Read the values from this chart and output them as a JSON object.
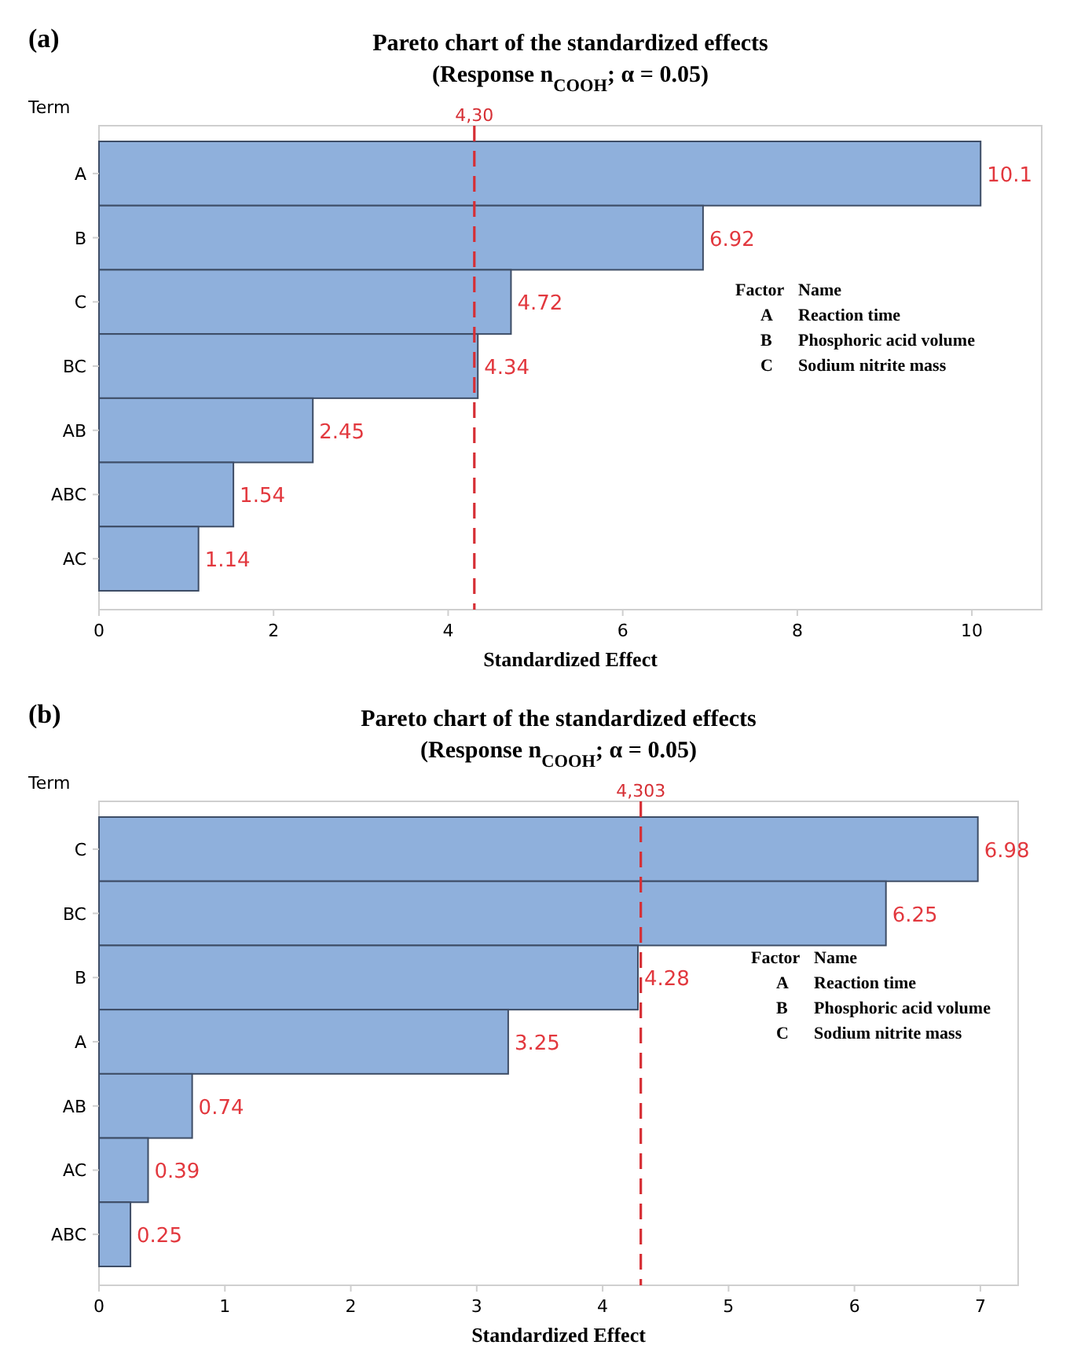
{
  "chart_data": [
    {
      "type": "bar",
      "orientation": "horizontal",
      "title": "Pareto chart of the standardized effects",
      "subtitle": "(Response n$_{COOH}$; α = 0.05)",
      "ylabel": "Term",
      "xlabel": "Standardized Effect",
      "categories": [
        "A",
        "B",
        "C",
        "BC",
        "AB",
        "ABC",
        "AC"
      ],
      "values": [
        10.1,
        6.92,
        4.72,
        4.34,
        2.45,
        1.54,
        1.14
      ],
      "color": "#8fb0dc",
      "data_labels": true,
      "xlim": [
        0,
        10.8
      ],
      "xticks": [
        0,
        2,
        4,
        6,
        8,
        10
      ],
      "ref_lines": [
        {
          "axis": "x",
          "value": 4.3,
          "label": "4,30",
          "color": "#d62f35",
          "line_style": "dashed"
        }
      ],
      "annotations": [
        "(a)",
        "Factor",
        "Name",
        "A",
        "Reaction time",
        "B",
        "Phosphoric acid volume",
        "C",
        "Sodium nitrite mass"
      ],
      "grid": false
    },
    {
      "type": "bar",
      "orientation": "horizontal",
      "title": "Pareto chart of the standardized effects",
      "subtitle": "(Response n$_{COOH}$; α = 0.05)",
      "ylabel": "Term",
      "xlabel": "Standardized Effect",
      "categories": [
        "C",
        "BC",
        "B",
        "A",
        "AB",
        "AC",
        "ABC"
      ],
      "values": [
        6.98,
        6.25,
        4.28,
        3.25,
        0.74,
        0.39,
        0.25
      ],
      "color": "#8fb0dc",
      "data_labels": true,
      "xlim": [
        0,
        7.3
      ],
      "xticks": [
        0,
        1,
        2,
        3,
        4,
        5,
        6,
        7
      ],
      "ref_lines": [
        {
          "axis": "x",
          "value": 4.303,
          "label": "4,303",
          "color": "#d62f35",
          "line_style": "dashed"
        }
      ],
      "annotations": [
        "(b)",
        "Factor",
        "Name",
        "A",
        "Reaction time",
        "B",
        "Phosphoric acid volume",
        "C",
        "Sodium nitrite mass"
      ],
      "grid": false
    }
  ]
}
